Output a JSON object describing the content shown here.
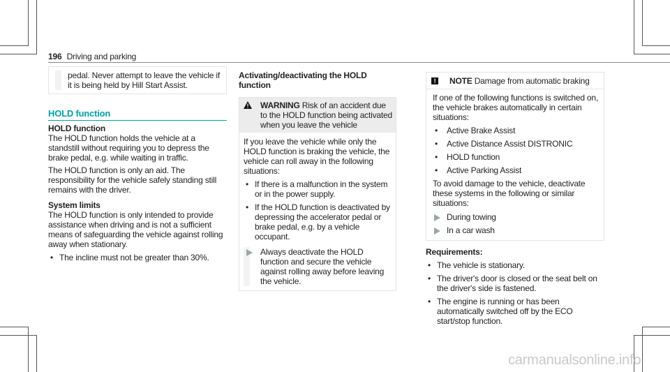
{
  "header": {
    "page_number": "196",
    "section": "Driving and parking"
  },
  "col1": {
    "box_text": "pedal. Never attempt to leave the vehicle if it is being held by Hill Start Assist.",
    "section_title": "HOLD function",
    "subtitle": "HOLD function",
    "para1": "The HOLD function holds the vehicle at a standstill without requiring you to depress the brake pedal, e.g. while waiting in traffic.",
    "para2": "The HOLD function is only an aid. The responsibility for the vehicle safely standing still remains with the driver.",
    "limits_title": "System limits",
    "para3": "The HOLD function is only intended to provide assistance when driving and is not a sufficient means of safeguarding the vehicle against rolling away when stationary.",
    "bullets": [
      "The incline must not be greater than 30%."
    ]
  },
  "col2": {
    "title": "Activating/deactivating the HOLD function",
    "warning_label": "WARNING",
    "warning_text": "Risk of an accident due to the HOLD function being activated when you leave the vehicle",
    "body": "If you leave the vehicle while only the HOLD function is braking the vehicle, the vehicle can roll away in the following situations:",
    "bullets": [
      "If there is a malfunction in the system or in the power supply.",
      "If the HOLD function is deactivated by depressing the accelerator pedal or brake pedal, e.g. by a vehicle occupant."
    ],
    "action": "Always deactivate the HOLD function and secure the vehicle against rolling away before leaving the vehicle."
  },
  "col3": {
    "note_label": "NOTE",
    "note_title": "Damage from automatic braking",
    "body1": "If one of the following functions is switched on, the vehicle brakes automatically in certain situations:",
    "bullets": [
      "Active Brake Assist",
      "Active Distance Assist DISTRONIC",
      "HOLD function",
      "Active Parking Assist"
    ],
    "body2": "To avoid damage to the vehicle, deactivate these systems in the following or similar situations:",
    "actions": [
      "During towing",
      "In a car wash"
    ],
    "req_title": "Requirements:",
    "req_bullets": [
      "The vehicle is stationary.",
      "The driver's door is closed or the seat belt on the driver's side is fastened.",
      "The engine is running or has been automatically switched off by the ECO start/stop function."
    ]
  },
  "watermark": "carmanualsonline.info",
  "colors": {
    "accent": "#00a3a3",
    "text": "#222222"
  }
}
